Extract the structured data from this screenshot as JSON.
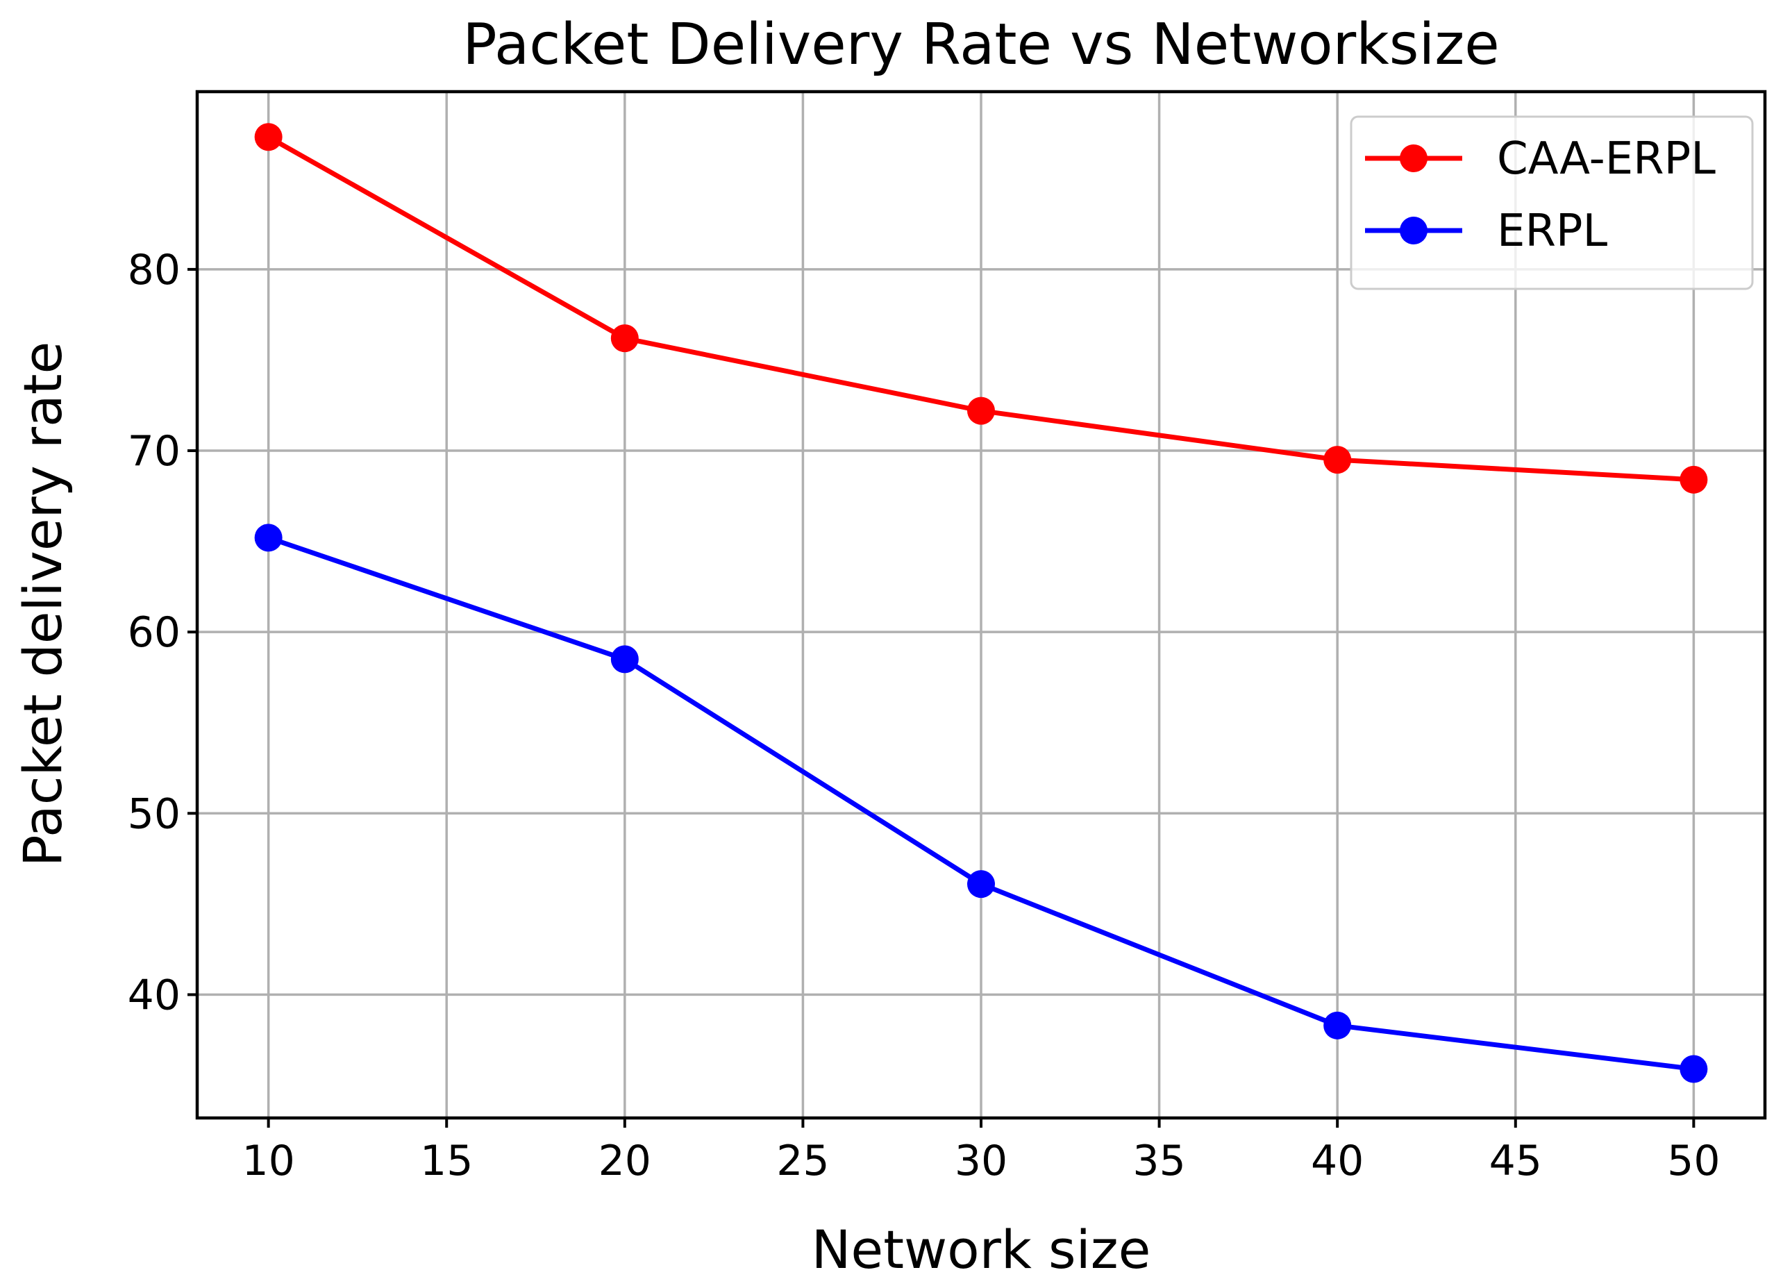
{
  "chart_data": {
    "type": "line",
    "title": "Packet Delivery Rate vs Networksize",
    "xlabel": "Network size",
    "ylabel": "Packet delivery rate",
    "xlim": [
      8,
      52
    ],
    "ylim": [
      33.2,
      89.8
    ],
    "x_ticks": [
      10,
      15,
      20,
      25,
      30,
      35,
      40,
      45,
      50
    ],
    "y_ticks": [
      40,
      50,
      60,
      70,
      80
    ],
    "grid": true,
    "legend_position": "top-right",
    "x": [
      10,
      20,
      30,
      40,
      50
    ],
    "series": [
      {
        "name": "CAA-ERPL",
        "color": "#ff0000",
        "marker": "circle",
        "values": [
          87.3,
          76.2,
          72.2,
          69.5,
          68.4
        ]
      },
      {
        "name": "ERPL",
        "color": "#0000ff",
        "marker": "circle",
        "values": [
          65.2,
          58.5,
          46.1,
          38.3,
          35.9
        ]
      }
    ]
  }
}
